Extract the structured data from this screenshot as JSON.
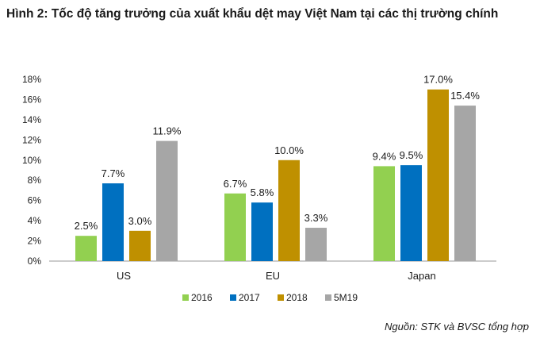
{
  "figure": {
    "title": "Hình 2: Tốc độ tăng trưởng của xuất khẩu dệt may Việt Nam tại các thị trường chính",
    "source": "Nguồn: STK và BVSC tổng hợp"
  },
  "chart_data": {
    "type": "bar",
    "categories": [
      "US",
      "EU",
      "Japan"
    ],
    "series": [
      {
        "name": "2016",
        "color": "#92d050",
        "values": [
          2.5,
          6.7,
          9.4
        ],
        "labels": [
          "2.5%",
          "6.7%",
          "9.4%"
        ]
      },
      {
        "name": "2017",
        "color": "#0070c0",
        "values": [
          7.7,
          5.8,
          9.5
        ],
        "labels": [
          "7.7%",
          "5.8%",
          "9.5%"
        ]
      },
      {
        "name": "2018",
        "color": "#bf9000",
        "values": [
          3.0,
          10.0,
          17.0
        ],
        "labels": [
          "3.0%",
          "10.0%",
          "17.0%"
        ]
      },
      {
        "name": "5M19",
        "color": "#a6a6a6",
        "values": [
          11.9,
          3.3,
          15.4
        ],
        "labels": [
          "11.9%",
          "3.3%",
          "15.4%"
        ]
      }
    ],
    "yticks": [
      "0%",
      "2%",
      "4%",
      "6%",
      "8%",
      "10%",
      "12%",
      "14%",
      "16%",
      "18%"
    ],
    "ylim": [
      0,
      18
    ],
    "legend": "bottom",
    "grid": false
  }
}
